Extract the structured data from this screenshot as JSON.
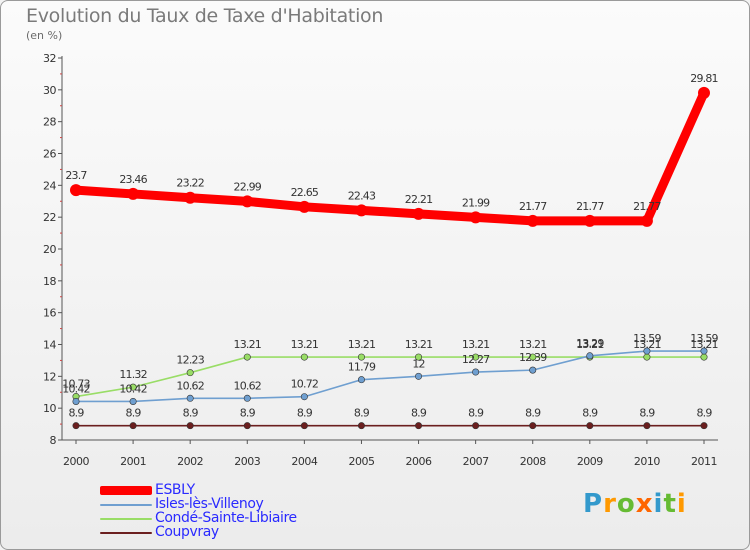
{
  "chart_data": {
    "type": "line",
    "title": "Evolution du Taux de Taxe d'Habitation",
    "subtitle": "(en %)",
    "xlabel": "",
    "ylabel": "",
    "categories": [
      "2000",
      "2001",
      "2002",
      "2003",
      "2004",
      "2005",
      "2006",
      "2007",
      "2008",
      "2009",
      "2010",
      "2011"
    ],
    "ylim": [
      8,
      32
    ],
    "yticks": [
      8,
      10,
      12,
      14,
      16,
      18,
      20,
      22,
      24,
      26,
      28,
      30,
      32
    ],
    "grid": false,
    "legend_position": "bottom-left",
    "series": [
      {
        "name": "Coupvray",
        "color": "#6b1f1f",
        "values": [
          8.9,
          8.9,
          8.9,
          8.9,
          8.9,
          8.9,
          8.9,
          8.9,
          8.9,
          8.9,
          8.9,
          8.9
        ],
        "labels": [
          "8.9",
          "8.9",
          "8.9",
          "8.9",
          "8.9",
          "8.9",
          "8.9",
          "8.9",
          "8.9",
          "8.9",
          "8.9",
          "8.9"
        ]
      },
      {
        "name": "Condé-Sainte-Libiaire",
        "color": "#99dd66",
        "values": [
          10.73,
          11.32,
          12.23,
          13.21,
          13.21,
          13.21,
          13.21,
          13.21,
          13.21,
          13.21,
          13.21,
          13.21
        ],
        "labels": [
          "10.73",
          "11.32",
          "12.23",
          "13.21",
          "13.21",
          "13.21",
          "13.21",
          "13.21",
          "13.21",
          "13.21",
          "13.21",
          "13.21"
        ]
      },
      {
        "name": "Isles-lès-Villenoy",
        "color": "#6f9fd0",
        "values": [
          10.42,
          10.42,
          10.62,
          10.62,
          10.72,
          11.79,
          12,
          12.27,
          12.39,
          13.29,
          13.59,
          13.59
        ],
        "labels": [
          "10.42",
          "10.42",
          "10.62",
          "10.62",
          "10.72",
          "11.79",
          "12",
          "12.27",
          "12.39",
          "13.29",
          "13.59",
          "13.59"
        ]
      },
      {
        "name": "ESBLY",
        "color": "#ff0000",
        "values": [
          23.7,
          23.46,
          23.22,
          22.99,
          22.65,
          22.43,
          22.21,
          21.99,
          21.77,
          21.77,
          21.77,
          29.81
        ],
        "labels": [
          "23.7",
          "23.46",
          "23.22",
          "22.99",
          "22.65",
          "22.43",
          "22.21",
          "21.99",
          "21.77",
          "21.77",
          "21.77",
          "29.81"
        ]
      }
    ]
  },
  "legend": {
    "items": [
      {
        "label": "ESBLY",
        "color": "#ff0000"
      },
      {
        "label": "Isles-lès-Villenoy",
        "color": "#6f9fd0"
      },
      {
        "label": "Condé-Sainte-Libiaire",
        "color": "#99dd66"
      },
      {
        "label": "Coupvray",
        "color": "#6b1f1f"
      }
    ]
  },
  "logo": {
    "letters": [
      "P",
      "r",
      "o",
      "x",
      "i",
      "t",
      "i"
    ],
    "colors": [
      "#3399cc",
      "#ff9900",
      "#66bb33",
      "#ff6600",
      "#3399cc",
      "#66bb33",
      "#ff9900"
    ]
  }
}
